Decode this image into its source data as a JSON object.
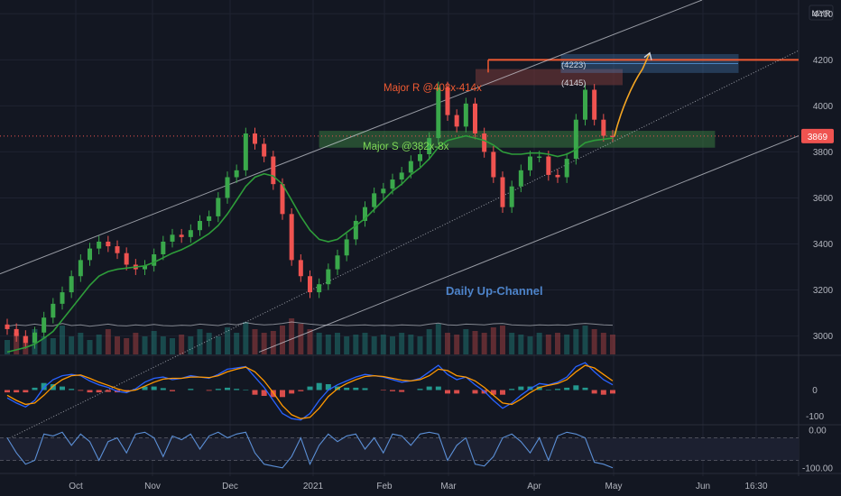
{
  "colors": {
    "background": "#131722",
    "grid": "#1f2331",
    "up": "#26a69a",
    "down": "#ef5350",
    "ma": "#2e9d3a",
    "channel": "#d1d4dc",
    "resistance": "#f05a32",
    "support": "#4caf50",
    "target": "#4f8fd1",
    "projection": "#f5a623",
    "annotation": "#4d83c9",
    "axis_text": "#b2b5be",
    "macd_line": "#2962ff",
    "signal_line": "#ff9800",
    "hist_up": "#26a69a",
    "hist_down": "#ef5350",
    "osc_line": "#5b8fd6"
  },
  "header": {
    "currency": "MYR"
  },
  "chart_data": [
    {
      "type": "line",
      "description_free": true,
      "x_ticks": [
        "Oct",
        "Nov",
        "Dec",
        "2021",
        "Feb",
        "Mar",
        "Apr",
        "May",
        "Jun",
        "16:30"
      ],
      "y_ticks": [
        4400,
        4200,
        4000,
        3800,
        3600,
        3400,
        3200,
        3000
      ],
      "ylim": [
        2920,
        4460
      ],
      "last_price": 3869,
      "price_label": "3869",
      "series": [
        {
          "values": [
            3030,
            3000,
            2970,
            3015,
            3080,
            3140,
            3190,
            3260,
            3330,
            3380,
            3410,
            3390,
            3360,
            3310,
            3290,
            3305,
            3355,
            3410,
            3440,
            3430,
            3460,
            3500,
            3520,
            3600,
            3690,
            3720,
            3880,
            3835,
            3780,
            3660,
            3530,
            3330,
            3260,
            3190,
            3225,
            3290,
            3350,
            3420,
            3500,
            3560,
            3620,
            3640,
            3680,
            3710,
            3760,
            3790,
            3860,
            4080,
            3960,
            3910,
            4010,
            3880,
            3800,
            3690,
            3560,
            3650,
            3720,
            3780,
            3780,
            3700,
            3690,
            3770,
            3940,
            4070,
            3940,
            3870,
            3869
          ]
        },
        {
          "values": [
            2930,
            2940,
            2950,
            2965,
            2990,
            3020,
            3070,
            3120,
            3170,
            3220,
            3260,
            3280,
            3290,
            3295,
            3300,
            3305,
            3320,
            3340,
            3360,
            3375,
            3395,
            3420,
            3445,
            3480,
            3530,
            3590,
            3650,
            3690,
            3705,
            3695,
            3660,
            3590,
            3520,
            3460,
            3420,
            3410,
            3420,
            3450,
            3480,
            3510,
            3550,
            3590,
            3630,
            3660,
            3700,
            3730,
            3770,
            3820,
            3850,
            3860,
            3870,
            3860,
            3850,
            3830,
            3800,
            3790,
            3790,
            3795,
            3795,
            3790,
            3780,
            3790,
            3810,
            3840,
            3850,
            3855,
            3860
          ]
        }
      ],
      "levels": {
        "resistance": 4200,
        "resistance_box": [
          4090,
          4160
        ],
        "support_box": [
          3820,
          3890
        ],
        "target_box": [
          4145,
          4223
        ]
      },
      "projection": [
        3869,
        3980,
        4090,
        4160,
        4230
      ],
      "annotations": {
        "resistance_label": "Major R @408x-414x",
        "support_label": "Major S @382x-8x",
        "upper_box_label": "(4223)",
        "lower_box_label": "(4145)",
        "channel_label": "Daily Up-Channel"
      },
      "volume": [
        0.4,
        0.6,
        0.5,
        0.7,
        0.5,
        0.45,
        0.8,
        0.5,
        0.6,
        0.4,
        0.55,
        0.7,
        0.5,
        0.45,
        0.6,
        0.5,
        0.65,
        0.5,
        0.45,
        0.55,
        0.5,
        0.7,
        0.6,
        0.5,
        0.75,
        0.6,
        0.9,
        0.7,
        0.6,
        0.65,
        0.8,
        1.0,
        0.85,
        0.7,
        0.6,
        0.55,
        0.6,
        0.5,
        0.55,
        0.6,
        0.5,
        0.55,
        0.5,
        0.6,
        0.55,
        0.5,
        0.7,
        0.85,
        0.6,
        0.55,
        0.7,
        0.65,
        0.6,
        0.75,
        0.8,
        0.6,
        0.55,
        0.5,
        0.6,
        0.55,
        0.6,
        0.55,
        0.7,
        0.8,
        0.7,
        0.6,
        0.55
      ]
    },
    {
      "type": "line",
      "y_ticks": [
        0,
        -100
      ],
      "ylim": [
        -130,
        130
      ],
      "series": [
        {
          "values": [
            -30,
            -50,
            -65,
            -40,
            10,
            40,
            55,
            60,
            55,
            35,
            20,
            10,
            -5,
            -10,
            5,
            30,
            45,
            50,
            40,
            45,
            55,
            50,
            45,
            60,
            80,
            85,
            90,
            50,
            10,
            -40,
            -90,
            -110,
            -115,
            -90,
            -40,
            0,
            20,
            35,
            50,
            60,
            55,
            50,
            40,
            30,
            35,
            45,
            70,
            95,
            60,
            40,
            50,
            20,
            -5,
            -40,
            -70,
            -50,
            -20,
            5,
            25,
            20,
            30,
            50,
            90,
            105,
            70,
            40,
            20
          ]
        },
        {
          "values": [
            -20,
            -40,
            -55,
            -50,
            -20,
            15,
            40,
            55,
            58,
            45,
            30,
            18,
            5,
            -5,
            0,
            15,
            30,
            42,
            45,
            45,
            50,
            50,
            48,
            55,
            70,
            80,
            88,
            70,
            35,
            -10,
            -60,
            -95,
            -110,
            -105,
            -70,
            -25,
            5,
            25,
            40,
            52,
            55,
            52,
            45,
            38,
            35,
            40,
            55,
            80,
            75,
            55,
            50,
            35,
            10,
            -20,
            -50,
            -55,
            -35,
            -10,
            10,
            18,
            25,
            40,
            70,
            95,
            85,
            60,
            35
          ]
        }
      ]
    },
    {
      "type": "line",
      "y_ticks": [
        "0.00",
        "-100.00"
      ],
      "ylim": [
        -110,
        10
      ],
      "series": [
        {
          "values": [
            -20,
            -60,
            -90,
            -80,
            -10,
            -15,
            -5,
            -40,
            -10,
            -30,
            -80,
            -30,
            -20,
            -60,
            -10,
            -5,
            -20,
            -70,
            -15,
            -25,
            -10,
            -50,
            -15,
            -5,
            -20,
            -10,
            -5,
            -60,
            -90,
            -95,
            -100,
            -70,
            -20,
            -90,
            -40,
            -10,
            -30,
            -15,
            -10,
            -50,
            -20,
            -60,
            -10,
            -15,
            -40,
            -10,
            -5,
            -10,
            -80,
            -40,
            -20,
            -90,
            -95,
            -70,
            -20,
            -10,
            -30,
            -60,
            -20,
            -80,
            -15,
            -5,
            -10,
            -20,
            -85,
            -90,
            -100
          ]
        }
      ]
    }
  ]
}
